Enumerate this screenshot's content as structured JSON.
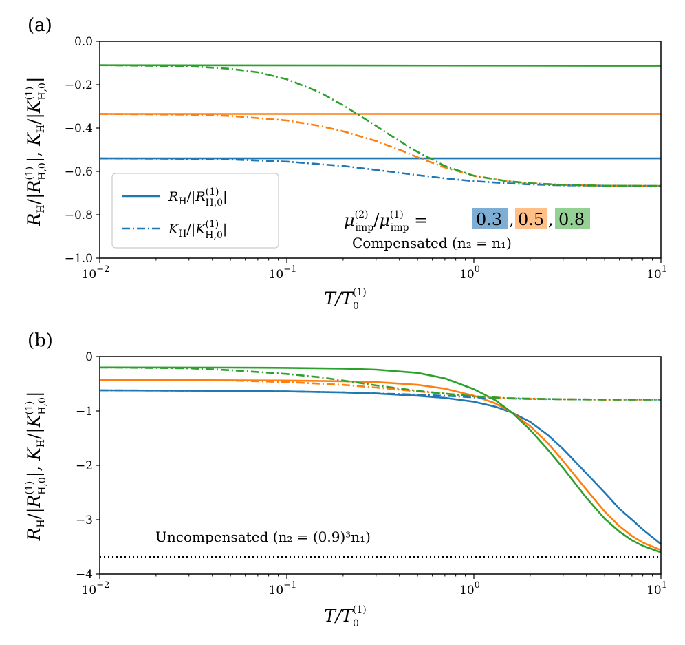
{
  "colors": {
    "blue": "#1f77b4",
    "orange": "#ff7f0e",
    "green": "#2ca02c",
    "blue_box": "#7eaed4",
    "orange_box": "#ffbf86",
    "green_box": "#95d095"
  },
  "chart_data": [
    {
      "panel_label": "(a)",
      "type": "line",
      "xscale": "log",
      "xlim": [
        0.01,
        10
      ],
      "ylim": [
        -1.0,
        0.0
      ],
      "x_ticks": [
        {
          "v": 0.01,
          "base": "10",
          "exp": "−2"
        },
        {
          "v": 0.1,
          "base": "10",
          "exp": "−1"
        },
        {
          "v": 1,
          "base": "10",
          "exp": "0"
        },
        {
          "v": 10,
          "base": "10",
          "exp": "1"
        }
      ],
      "y_ticks": [
        {
          "v": 0.0,
          "label": "0.0"
        },
        {
          "v": -0.2,
          "label": "−0.2"
        },
        {
          "v": -0.4,
          "label": "−0.4"
        },
        {
          "v": -0.6,
          "label": "−0.6"
        },
        {
          "v": -0.8,
          "label": "−0.8"
        },
        {
          "v": -1.0,
          "label": "−1.0"
        }
      ],
      "xlabel": {
        "main": "T/T",
        "sub": "0",
        "sup": "(1)"
      },
      "ylabel": "R_H/|R_H,0^(1)|,  K_H/|K_H,0^(1)|",
      "legend": {
        "location": "lower left",
        "entries": [
          {
            "style": "solid",
            "label": "R_H/|R_H,0^(1)|"
          },
          {
            "style": "dashdot",
            "label": "K_H/|K_H,0^(1)|"
          }
        ]
      },
      "annotation": {
        "ratio_label": "μ_imp^(2)/μ_imp^(1) =",
        "values": [
          "0.3",
          "0.5",
          "0.8"
        ],
        "caption": "Compensated (n₂ = n₁)"
      },
      "series": [
        {
          "name": "R_H 0.3",
          "ratio": 0.3,
          "color": "blue",
          "style": "solid",
          "x": [
            0.01,
            10
          ],
          "y": [
            -0.54,
            -0.54
          ]
        },
        {
          "name": "R_H 0.5",
          "ratio": 0.5,
          "color": "orange",
          "style": "solid",
          "x": [
            0.01,
            10
          ],
          "y": [
            -0.335,
            -0.335
          ]
        },
        {
          "name": "R_H 0.8",
          "ratio": 0.8,
          "color": "green",
          "style": "solid",
          "x": [
            0.01,
            10
          ],
          "y": [
            -0.11,
            -0.113
          ]
        },
        {
          "name": "K_H 0.3",
          "ratio": 0.3,
          "color": "blue",
          "style": "dashdot",
          "x": [
            0.01,
            0.03,
            0.05,
            0.1,
            0.2,
            0.3,
            0.5,
            0.7,
            1,
            1.5,
            2,
            3,
            5,
            10
          ],
          "y": [
            -0.54,
            -0.542,
            -0.545,
            -0.555,
            -0.575,
            -0.593,
            -0.617,
            -0.632,
            -0.645,
            -0.655,
            -0.66,
            -0.664,
            -0.666,
            -0.667
          ]
        },
        {
          "name": "K_H 0.5",
          "ratio": 0.5,
          "color": "orange",
          "style": "dashdot",
          "x": [
            0.01,
            0.03,
            0.05,
            0.1,
            0.15,
            0.2,
            0.3,
            0.4,
            0.5,
            0.7,
            1,
            1.5,
            2,
            3,
            5,
            10
          ],
          "y": [
            -0.335,
            -0.338,
            -0.344,
            -0.365,
            -0.39,
            -0.415,
            -0.46,
            -0.5,
            -0.535,
            -0.582,
            -0.62,
            -0.645,
            -0.655,
            -0.662,
            -0.666,
            -0.667
          ]
        },
        {
          "name": "K_H 0.8",
          "ratio": 0.8,
          "color": "green",
          "style": "dashdot",
          "x": [
            0.01,
            0.03,
            0.05,
            0.07,
            0.1,
            0.15,
            0.2,
            0.3,
            0.4,
            0.5,
            0.7,
            1,
            1.5,
            2,
            3,
            5,
            10
          ],
          "y": [
            -0.11,
            -0.115,
            -0.127,
            -0.143,
            -0.175,
            -0.235,
            -0.295,
            -0.39,
            -0.46,
            -0.51,
            -0.575,
            -0.62,
            -0.645,
            -0.655,
            -0.662,
            -0.666,
            -0.667
          ]
        }
      ]
    },
    {
      "panel_label": "(b)",
      "type": "line",
      "xscale": "log",
      "xlim": [
        0.01,
        10
      ],
      "ylim": [
        -4,
        0
      ],
      "x_ticks": [
        {
          "v": 0.01,
          "base": "10",
          "exp": "−2"
        },
        {
          "v": 0.1,
          "base": "10",
          "exp": "−1"
        },
        {
          "v": 1,
          "base": "10",
          "exp": "0"
        },
        {
          "v": 10,
          "base": "10",
          "exp": "1"
        }
      ],
      "y_ticks": [
        {
          "v": 0,
          "label": "0"
        },
        {
          "v": -1,
          "label": "−1"
        },
        {
          "v": -2,
          "label": "−2"
        },
        {
          "v": -3,
          "label": "−3"
        },
        {
          "v": -4,
          "label": "−4"
        }
      ],
      "xlabel": {
        "main": "T/T",
        "sub": "0",
        "sup": "(1)"
      },
      "ylabel": "R_H/|R_H,0^(1)|,  K_H/|K_H,0^(1)|",
      "annotation": {
        "caption": "Uncompensated (n₂ = (0.9)³n₁)"
      },
      "reference_line": {
        "y": -3.68,
        "style": "dotted",
        "color": "#000000"
      },
      "series": [
        {
          "name": "R_H 0.3",
          "ratio": 0.3,
          "color": "blue",
          "style": "solid",
          "x": [
            0.01,
            0.05,
            0.1,
            0.2,
            0.3,
            0.5,
            0.7,
            1,
            1.3,
            1.6,
            2,
            2.5,
            3,
            4,
            5,
            6,
            7,
            8,
            10
          ],
          "y": [
            -0.62,
            -0.63,
            -0.64,
            -0.66,
            -0.68,
            -0.72,
            -0.76,
            -0.83,
            -0.92,
            -1.03,
            -1.2,
            -1.45,
            -1.7,
            -2.15,
            -2.5,
            -2.8,
            -3.0,
            -3.18,
            -3.45
          ]
        },
        {
          "name": "R_H 0.5",
          "ratio": 0.5,
          "color": "orange",
          "style": "solid",
          "x": [
            0.01,
            0.05,
            0.1,
            0.2,
            0.3,
            0.5,
            0.7,
            1,
            1.3,
            1.6,
            2,
            2.5,
            3,
            4,
            5,
            6,
            7,
            8,
            10
          ],
          "y": [
            -0.43,
            -0.435,
            -0.44,
            -0.455,
            -0.47,
            -0.52,
            -0.59,
            -0.72,
            -0.86,
            -1.03,
            -1.28,
            -1.6,
            -1.92,
            -2.45,
            -2.85,
            -3.12,
            -3.3,
            -3.42,
            -3.56
          ]
        },
        {
          "name": "R_H 0.8",
          "ratio": 0.8,
          "color": "green",
          "style": "solid",
          "x": [
            0.01,
            0.05,
            0.1,
            0.2,
            0.3,
            0.5,
            0.7,
            1,
            1.3,
            1.6,
            2,
            2.5,
            3,
            4,
            5,
            6,
            7,
            8,
            10
          ],
          "y": [
            -0.2,
            -0.203,
            -0.207,
            -0.22,
            -0.24,
            -0.3,
            -0.4,
            -0.6,
            -0.8,
            -1.03,
            -1.35,
            -1.72,
            -2.05,
            -2.6,
            -2.98,
            -3.22,
            -3.38,
            -3.48,
            -3.6
          ]
        },
        {
          "name": "K_H 0.3",
          "ratio": 0.3,
          "color": "blue",
          "style": "dashdot",
          "x": [
            0.01,
            0.05,
            0.1,
            0.2,
            0.5,
            0.8,
            1,
            1.5,
            2,
            3,
            5,
            10
          ],
          "y": [
            -0.62,
            -0.63,
            -0.64,
            -0.66,
            -0.7,
            -0.73,
            -0.75,
            -0.77,
            -0.78,
            -0.785,
            -0.79,
            -0.79
          ]
        },
        {
          "name": "K_H 0.5",
          "ratio": 0.5,
          "color": "orange",
          "style": "dashdot",
          "x": [
            0.01,
            0.05,
            0.1,
            0.2,
            0.3,
            0.5,
            0.8,
            1,
            1.5,
            2,
            3,
            5,
            10
          ],
          "y": [
            -0.43,
            -0.44,
            -0.47,
            -0.52,
            -0.57,
            -0.64,
            -0.7,
            -0.73,
            -0.765,
            -0.775,
            -0.785,
            -0.79,
            -0.79
          ]
        },
        {
          "name": "K_H 0.8",
          "ratio": 0.8,
          "color": "green",
          "style": "dashdot",
          "x": [
            0.01,
            0.03,
            0.05,
            0.1,
            0.15,
            0.2,
            0.3,
            0.5,
            0.8,
            1,
            1.5,
            2,
            3,
            5,
            10
          ],
          "y": [
            -0.2,
            -0.215,
            -0.25,
            -0.32,
            -0.38,
            -0.44,
            -0.53,
            -0.63,
            -0.7,
            -0.73,
            -0.765,
            -0.775,
            -0.785,
            -0.79,
            -0.79
          ]
        }
      ]
    }
  ]
}
